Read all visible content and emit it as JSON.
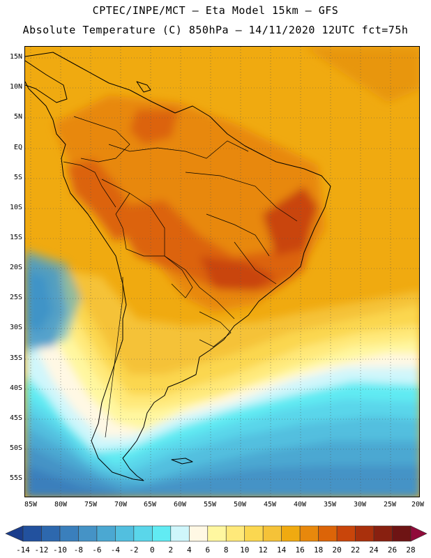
{
  "header": {
    "line1": "CPTEC/INPE/MCT –  Eta Model 15km – GFS",
    "line2": "Absolute Temperature (C) 850hPa – 14/11/2020 12UTC fct=75h"
  },
  "map": {
    "lat_labels": [
      "15N",
      "10N",
      "5N",
      "EQ",
      "5S",
      "10S",
      "15S",
      "20S",
      "25S",
      "30S",
      "35S",
      "40S",
      "45S",
      "50S",
      "55S"
    ],
    "lon_labels": [
      "85W",
      "80W",
      "75W",
      "70W",
      "65W",
      "60W",
      "55W",
      "50W",
      "45W",
      "40W",
      "35W",
      "30W",
      "25W",
      "20W"
    ]
  },
  "colorbar": {
    "levels": [
      "-14",
      "-12",
      "-10",
      "-8",
      "-6",
      "-4",
      "-2",
      "0",
      "2",
      "4",
      "6",
      "8",
      "10",
      "12",
      "14",
      "16",
      "18",
      "20",
      "22",
      "24",
      "26",
      "28"
    ],
    "colors": [
      "#1a3d8c",
      "#22519e",
      "#2d68ae",
      "#3a7fbc",
      "#4593c6",
      "#4ba8d2",
      "#52bfdf",
      "#5ad6ea",
      "#61ebf3",
      "#cff6fb",
      "#fff8e4",
      "#fff7a0",
      "#ffe97a",
      "#fbd750",
      "#f5c238",
      "#f0aa10",
      "#e8880c",
      "#dc6408",
      "#c9450a",
      "#a9300c",
      "#882010",
      "#6e1414",
      "#900a3a"
    ]
  }
}
